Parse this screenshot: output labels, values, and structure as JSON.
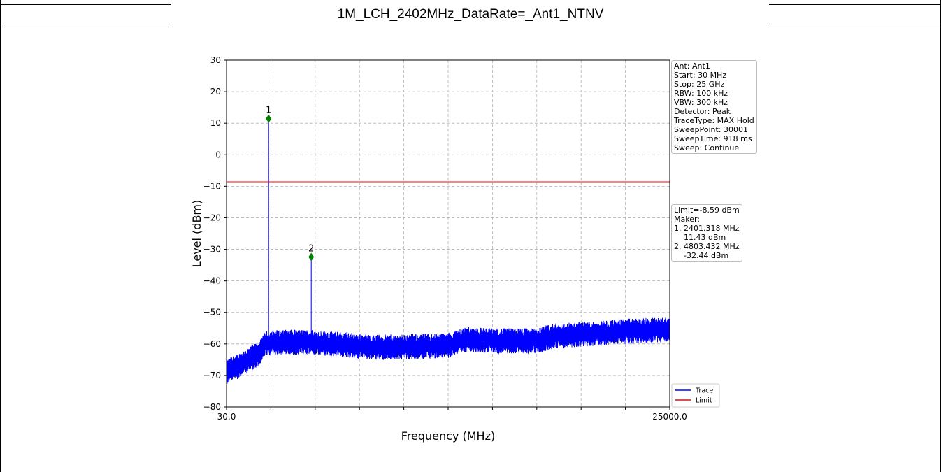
{
  "page": {
    "title": "1M_LCH_2402MHz_DataRate=_Ant1_NTNV"
  },
  "chart_data": {
    "type": "line",
    "xlabel": "Frequency (MHz)",
    "ylabel": "Level (dBm)",
    "xlim": [
      30.0,
      25000.0
    ],
    "ylim": [
      -80,
      30
    ],
    "x_tick_labels": [
      "30.0",
      "25000.0"
    ],
    "x_minor_tick_count": 9,
    "y_ticks": [
      30,
      20,
      10,
      0,
      -10,
      -20,
      -30,
      -40,
      -50,
      -60,
      -70,
      -80
    ],
    "y_tick_labels": [
      "30",
      "20",
      "10",
      "0",
      "−10",
      "−20",
      "−30",
      "−40",
      "−50",
      "−60",
      "−70",
      "−80"
    ],
    "grid": true,
    "series": [
      {
        "name": "Trace",
        "color": "#0000ff",
        "noise_floor_profile": {
          "x": [
            30,
            1000,
            1900,
            2200,
            3000,
            4800,
            6000,
            8000,
            10000,
            12500,
            13500,
            15000,
            17500,
            18500,
            20000,
            22500,
            25000
          ],
          "y": [
            -69,
            -66,
            -63,
            -60,
            -59.5,
            -59.5,
            -60,
            -61,
            -61,
            -60.5,
            -58.5,
            -59,
            -59,
            -57.5,
            -57,
            -56,
            -55.5
          ]
        },
        "peaks": [
          {
            "x": 2401.318,
            "y": 11.43
          },
          {
            "x": 4803.432,
            "y": -32.44
          }
        ]
      },
      {
        "name": "Limit",
        "color": "#ff0000",
        "y": -8.59
      }
    ],
    "markers": [
      {
        "label": "1",
        "x": 2401.318,
        "y": 11.43,
        "color": "#008000"
      },
      {
        "label": "2",
        "x": 4803.432,
        "y": -32.44,
        "color": "#008000"
      }
    ],
    "legend": {
      "placement": "bottom-right",
      "entries": [
        {
          "label": "Trace",
          "color": "#0000ff"
        },
        {
          "label": "Limit",
          "color": "#ff0000"
        }
      ]
    },
    "settings_box": {
      "lines": [
        "Ant: Ant1",
        "Start: 30 MHz",
        "Stop: 25 GHz",
        "RBW: 100 kHz",
        "VBW: 300 kHz",
        "Detector: Peak",
        "TraceType: MAX Hold",
        "SweepPoint: 30001",
        "SweepTime: 918 ms",
        "Sweep: Continue"
      ]
    },
    "marker_box": {
      "lines": [
        "Limit=-8.59 dBm",
        "Maker:",
        "1. 2401.318 MHz",
        "    11.43 dBm",
        "2. 4803.432 MHz",
        "    -32.44 dBm"
      ]
    }
  }
}
